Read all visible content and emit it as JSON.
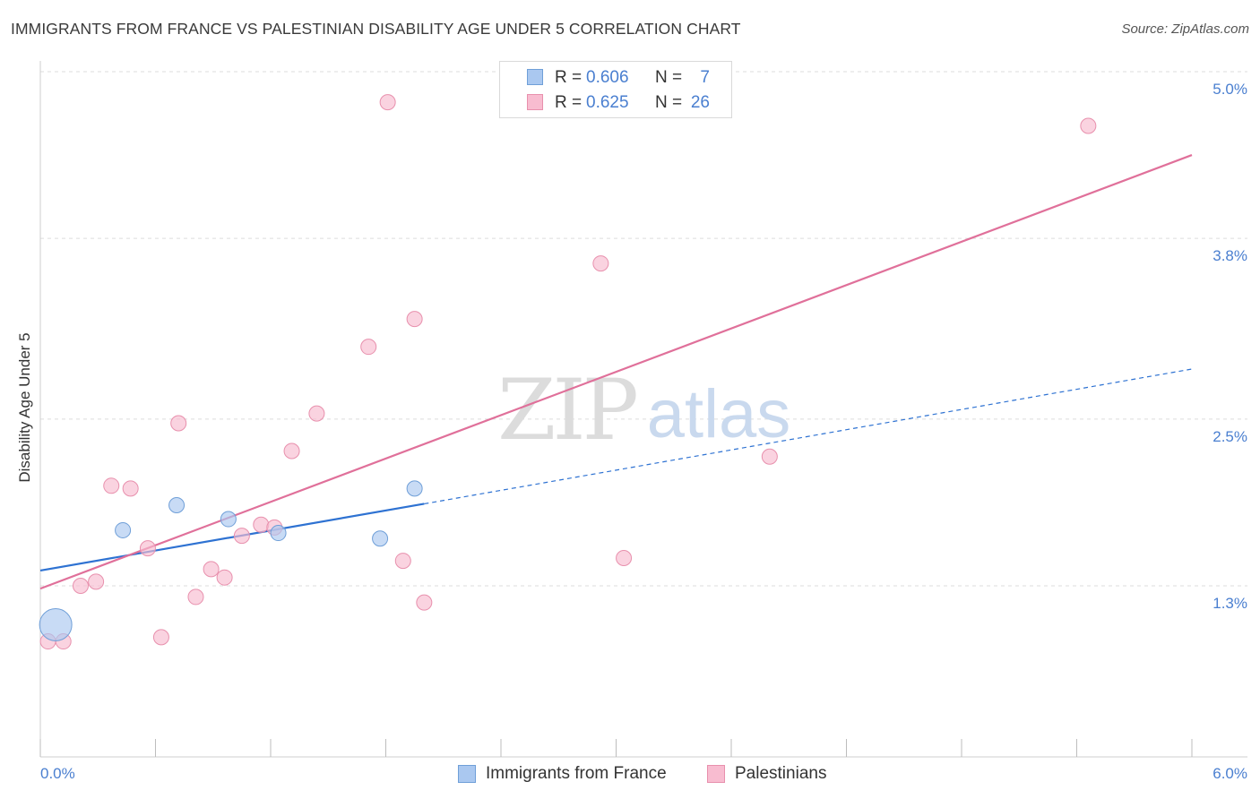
{
  "header": {
    "title": "IMMIGRANTS FROM FRANCE VS PALESTINIAN DISABILITY AGE UNDER 5 CORRELATION CHART",
    "source": "Source: ZipAtlas.com"
  },
  "watermark": {
    "zip": "ZIP",
    "atlas": "atlas"
  },
  "stats": [
    {
      "r_label": "R =",
      "r_value": "0.606",
      "n_label": "N =",
      "n_value": "7",
      "color": "#aac8f0"
    },
    {
      "r_label": "R =",
      "r_value": "0.625",
      "n_label": "N =",
      "n_value": "26",
      "color": "#f8bcd0"
    }
  ],
  "legend": [
    {
      "label": "Immigrants from France",
      "color": "#aac8f0"
    },
    {
      "label": "Palestinians",
      "color": "#f8bcd0"
    }
  ],
  "chart_data": {
    "type": "scatter",
    "title": "IMMIGRANTS FROM FRANCE VS PALESTINIAN DISABILITY AGE UNDER 5 CORRELATION CHART",
    "xlabel": "",
    "ylabel": "Disability Age Under 5",
    "xlim": [
      0.0,
      6.0
    ],
    "ylim": [
      0.0,
      5.0
    ],
    "x_tick_labels": [
      "0.0%",
      "6.0%"
    ],
    "y_ticks": [
      1.3,
      2.5,
      3.8,
      5.0
    ],
    "y_tick_labels": [
      "1.3%",
      "2.5%",
      "3.8%",
      "5.0%"
    ],
    "grid": true,
    "legend_position": "bottom-center",
    "series": [
      {
        "name": "Immigrants from France",
        "color": "#aac8f0",
        "stroke": "#6f9fd8",
        "line_color": "#2e72d2",
        "points": [
          {
            "x": 0.08,
            "y": 1.02,
            "big": true
          },
          {
            "x": 0.43,
            "y": 1.7
          },
          {
            "x": 0.71,
            "y": 1.88
          },
          {
            "x": 0.98,
            "y": 1.78
          },
          {
            "x": 1.24,
            "y": 1.68
          },
          {
            "x": 1.77,
            "y": 1.64
          },
          {
            "x": 1.95,
            "y": 2.0
          }
        ],
        "trend": {
          "x0": 0.0,
          "y0": 1.41,
          "x1": 2.0,
          "y1": 1.89,
          "x_dash_end": 6.0,
          "y_dash_end": 2.86
        }
      },
      {
        "name": "Palestinians",
        "color": "#f8bcd0",
        "stroke": "#e890ad",
        "line_color": "#e0709a",
        "points": [
          {
            "x": 0.04,
            "y": 0.9
          },
          {
            "x": 0.12,
            "y": 0.9
          },
          {
            "x": 0.21,
            "y": 1.3
          },
          {
            "x": 0.29,
            "y": 1.33
          },
          {
            "x": 0.37,
            "y": 2.02
          },
          {
            "x": 0.47,
            "y": 2.0
          },
          {
            "x": 0.56,
            "y": 1.57
          },
          {
            "x": 0.63,
            "y": 0.93
          },
          {
            "x": 0.72,
            "y": 2.47
          },
          {
            "x": 0.81,
            "y": 1.22
          },
          {
            "x": 0.89,
            "y": 1.42
          },
          {
            "x": 0.96,
            "y": 1.36
          },
          {
            "x": 1.05,
            "y": 1.66
          },
          {
            "x": 1.15,
            "y": 1.74
          },
          {
            "x": 1.22,
            "y": 1.72
          },
          {
            "x": 1.31,
            "y": 2.27
          },
          {
            "x": 1.44,
            "y": 2.54
          },
          {
            "x": 1.71,
            "y": 3.02
          },
          {
            "x": 1.81,
            "y": 4.78
          },
          {
            "x": 1.89,
            "y": 1.48
          },
          {
            "x": 1.95,
            "y": 3.22
          },
          {
            "x": 2.0,
            "y": 1.18
          },
          {
            "x": 2.92,
            "y": 3.62
          },
          {
            "x": 3.04,
            "y": 1.5
          },
          {
            "x": 3.8,
            "y": 2.23
          },
          {
            "x": 5.46,
            "y": 4.61
          }
        ],
        "trend": {
          "x0": 0.0,
          "y0": 1.28,
          "x1": 6.0,
          "y1": 4.4
        }
      }
    ]
  }
}
